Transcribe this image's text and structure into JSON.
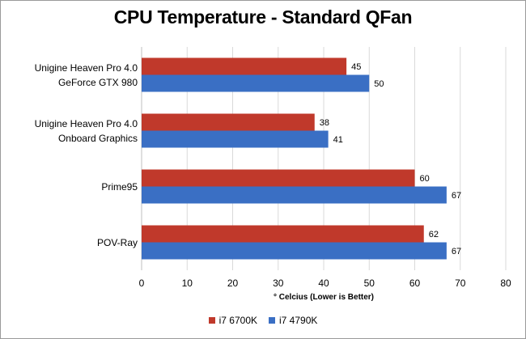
{
  "chart_data": {
    "type": "bar",
    "orientation": "horizontal",
    "title": "CPU Temperature - Standard QFan",
    "xlabel": "° Celcius (Lower is Better)",
    "ylabel": "",
    "xlim": [
      0,
      80
    ],
    "x_ticks": [
      "0",
      "10",
      "20",
      "30",
      "40",
      "50",
      "60",
      "70",
      "80"
    ],
    "grid": true,
    "legend_position": "bottom",
    "categories": [
      [
        "Unigine Heaven Pro 4.0",
        "GeForce GTX 980"
      ],
      [
        "Unigine Heaven Pro 4.0",
        "Onboard Graphics"
      ],
      [
        "Prime95"
      ],
      [
        "POV-Ray"
      ]
    ],
    "series": [
      {
        "name": "i7 6700K",
        "color": "#c0392b",
        "values": [
          45,
          38,
          60,
          62
        ]
      },
      {
        "name": "i7 4790K",
        "color": "#3a6fc4",
        "values": [
          50,
          41,
          67,
          67
        ]
      }
    ]
  }
}
